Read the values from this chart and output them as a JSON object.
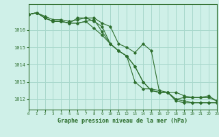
{
  "background_color": "#cff0e8",
  "plot_bg_color": "#cff0e8",
  "grid_color": "#a8d8cc",
  "line_color": "#2d6e2d",
  "title": "Graphe pression niveau de la mer (hPa)",
  "xlim": [
    0,
    23
  ],
  "ylim": [
    1011.4,
    1017.5
  ],
  "yticks": [
    1012,
    1013,
    1014,
    1015,
    1016
  ],
  "xticks": [
    0,
    1,
    2,
    3,
    4,
    5,
    6,
    7,
    8,
    9,
    10,
    11,
    12,
    13,
    14,
    15,
    16,
    17,
    18,
    19,
    20,
    21,
    22,
    23
  ],
  "series": [
    [
      1016.9,
      1017.0,
      1016.8,
      1016.6,
      1016.6,
      1016.5,
      1016.6,
      1016.7,
      1016.5,
      1016.2,
      1015.2,
      1014.8,
      1014.5,
      1013.0,
      1012.6,
      1012.6,
      1012.5,
      1012.4,
      1012.4,
      1012.2,
      1012.1,
      1012.1,
      1012.2,
      1011.9
    ],
    [
      1016.9,
      1017.0,
      1016.7,
      1016.5,
      1016.5,
      1016.4,
      1016.4,
      1016.5,
      1016.1,
      1015.7,
      1015.2,
      1014.8,
      1014.5,
      1013.9,
      1013.0,
      1012.5,
      1012.4,
      1012.4,
      1012.0,
      1011.9,
      1011.8,
      1011.8,
      1011.8,
      1011.8
    ],
    [
      1016.9,
      1017.0,
      1016.7,
      1016.5,
      1016.5,
      1016.4,
      1016.4,
      1016.5,
      1016.6,
      1015.9,
      1015.2,
      1014.8,
      1014.5,
      1013.9,
      1013.0,
      1012.5,
      1012.4,
      1012.4,
      1011.9,
      1011.8,
      1011.8,
      1011.8,
      1011.8,
      1011.8
    ],
    [
      1016.9,
      1017.0,
      1016.7,
      1016.5,
      1016.5,
      1016.4,
      1016.7,
      1016.7,
      1016.7,
      1016.4,
      1016.2,
      1015.2,
      1015.0,
      1014.7,
      1015.2,
      1014.8,
      1012.4,
      1012.4,
      1012.0,
      1012.1,
      1012.1,
      1012.1,
      1012.1,
      1011.9
    ]
  ]
}
